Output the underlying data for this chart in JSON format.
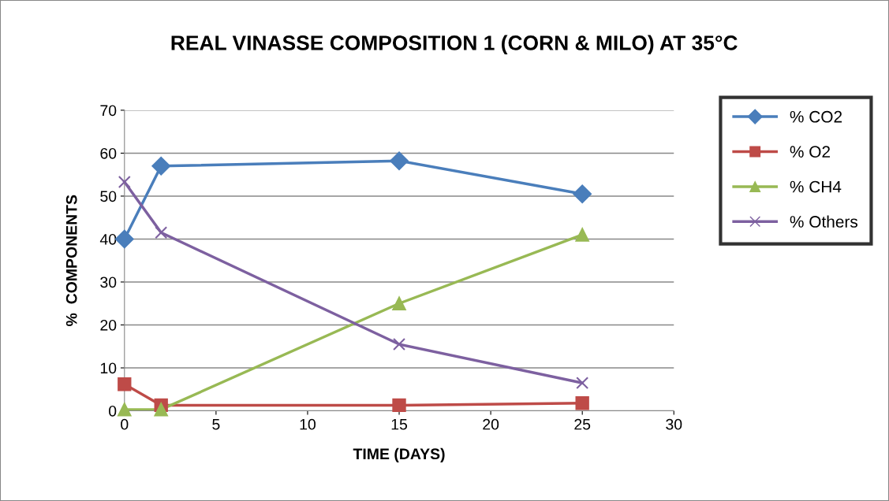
{
  "chart_data": {
    "type": "line",
    "title": "REAL VINASSE COMPOSITION 1 (CORN & MILO) AT 35°C",
    "xlabel": "TIME (DAYS)",
    "ylabel": "%  COMPONENTS",
    "x": [
      0,
      2,
      15,
      25
    ],
    "series": [
      {
        "name": "% CO2",
        "color": "#4a7ebb",
        "marker": "diamond",
        "values": [
          40,
          57,
          58.2,
          50.5
        ]
      },
      {
        "name": "% O2",
        "color": "#be4b48",
        "marker": "square",
        "values": [
          6.2,
          1.3,
          1.3,
          1.8
        ]
      },
      {
        "name": "% CH4",
        "color": "#98b954",
        "marker": "triangle",
        "values": [
          0.3,
          0.3,
          25,
          41
        ]
      },
      {
        "name": "% Others",
        "color": "#7d60a0",
        "marker": "cross",
        "values": [
          53.3,
          41.5,
          15.5,
          6.5
        ]
      }
    ],
    "xlim": [
      0,
      30
    ],
    "xticks": [
      0,
      5,
      10,
      15,
      20,
      25,
      30
    ],
    "ylim": [
      0,
      70
    ],
    "yticks": [
      0,
      10,
      20,
      30,
      40,
      50,
      60,
      70
    ],
    "grid": "y",
    "legend": "right",
    "line_style": "solid"
  }
}
